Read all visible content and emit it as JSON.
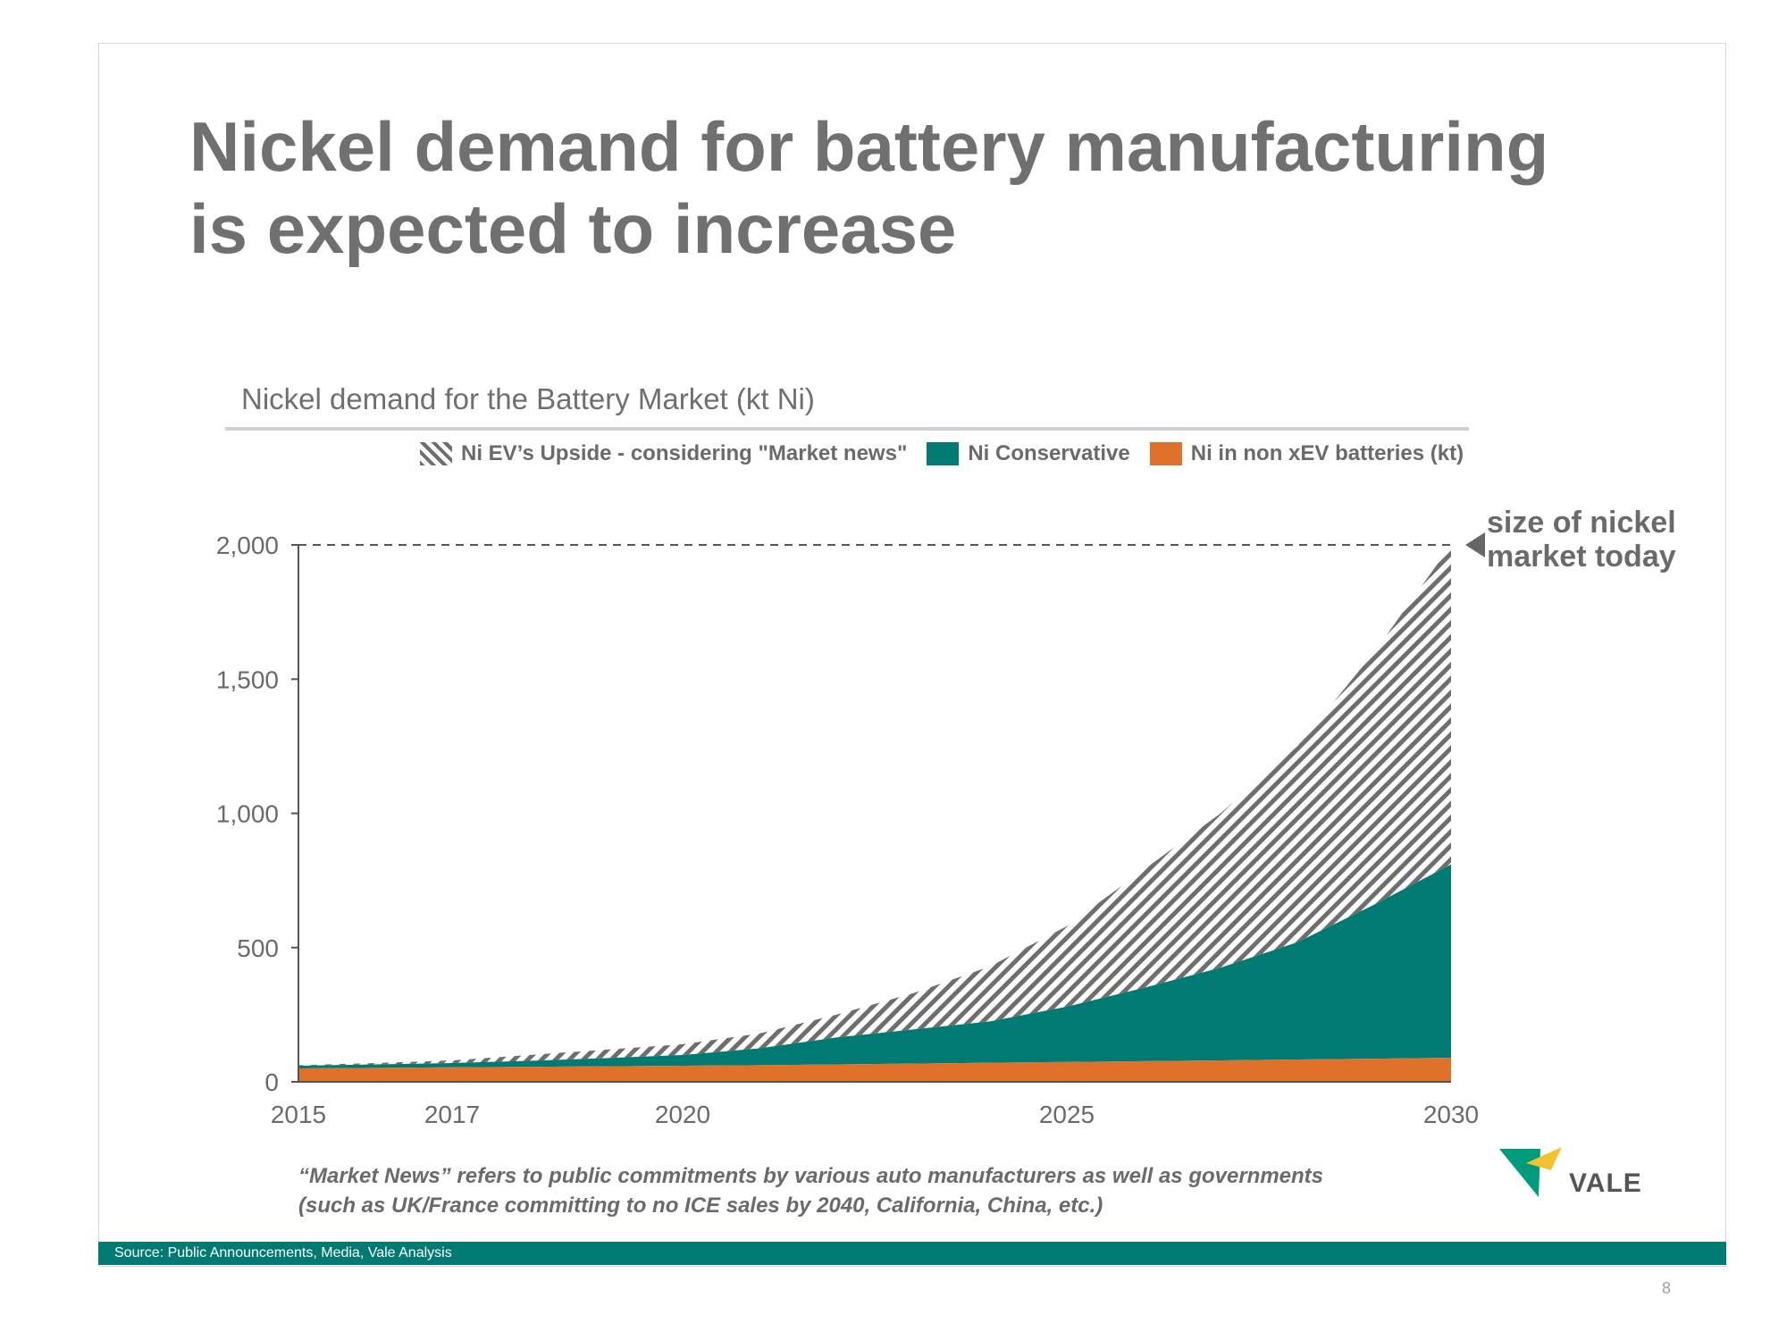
{
  "title": "Nickel demand for battery manufacturing is expected to increase",
  "chart_heading": "Nickel demand for the Battery Market (kt Ni)",
  "legend": {
    "upside": "Ni EV’s Upside - considering \"Market news\"",
    "conservative": "Ni Conservative",
    "non_xev": "Ni in non xEV batteries (kt)"
  },
  "annotation": "size of nickel market today",
  "footnote": "“Market News” refers to public commitments by various auto manufacturers as well as governments (such as UK/France committing to no ICE sales by 2040, California, China, etc.)",
  "source": "Source: Public Announcements, Media, Vale Analysis",
  "page_number": "8",
  "logo_text": "VALE",
  "colors": {
    "conservative": "#007a72",
    "non_xev": "#e0712a",
    "hatch": "#6e6e6e",
    "logo_green": "#009b7d",
    "logo_yellow": "#f2c230"
  },
  "chart_data": {
    "type": "area",
    "stacked": true,
    "x": [
      2015,
      2016,
      2017,
      2018,
      2019,
      2020,
      2021,
      2022,
      2023,
      2024,
      2025,
      2026,
      2027,
      2028,
      2029,
      2030
    ],
    "x_tick_labels": [
      "2015",
      "2017",
      "2020",
      "2025",
      "2030"
    ],
    "series": [
      {
        "name": "Ni in non xEV batteries (kt)",
        "values": [
          50,
          52,
          54,
          56,
          58,
          60,
          62,
          65,
          68,
          71,
          74,
          77,
          80,
          83,
          86,
          90
        ]
      },
      {
        "name": "Ni Conservative",
        "values": [
          60,
          65,
          70,
          78,
          88,
          100,
          125,
          165,
          195,
          225,
          280,
          350,
          425,
          520,
          660,
          810
        ]
      },
      {
        "name": "Ni EV’s Upside - considering \"Market news\"",
        "values": [
          62,
          70,
          80,
          100,
          120,
          140,
          180,
          250,
          330,
          430,
          580,
          790,
          1000,
          1250,
          1600,
          2000
        ]
      }
    ],
    "ylim": [
      0,
      2000
    ],
    "y_ticks": [
      0,
      500,
      1000,
      1500,
      2000
    ],
    "y_tick_labels": [
      "0",
      "500",
      "1,000",
      "1,500",
      "2,000"
    ],
    "reference_line": {
      "value": 2000,
      "style": "dashed"
    },
    "grid": false,
    "legend_position": "top"
  }
}
